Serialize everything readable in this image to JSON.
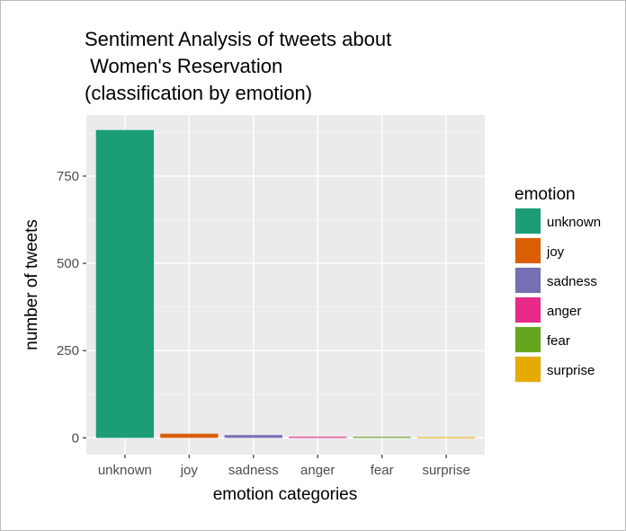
{
  "chart_data": {
    "type": "bar",
    "title": [
      "Sentiment Analysis of tweets about",
      " Women's Reservation",
      "(classification by emotion)"
    ],
    "xlabel": "emotion categories",
    "ylabel": "number of tweets",
    "categories": [
      "unknown",
      "joy",
      "sadness",
      "anger",
      "fear",
      "surprise"
    ],
    "values": [
      882,
      12,
      8,
      3,
      3,
      2
    ],
    "colors": [
      "#1b9e77",
      "#d95f02",
      "#7570b3",
      "#e7298a",
      "#66a61e",
      "#e6ab02"
    ],
    "yticks": [
      0,
      250,
      500,
      750
    ],
    "ylim": [
      -48,
      925
    ],
    "grid": true,
    "legend": {
      "title": "emotion",
      "position": "right",
      "items": [
        "unknown",
        "joy",
        "sadness",
        "anger",
        "fear",
        "surprise"
      ]
    }
  }
}
